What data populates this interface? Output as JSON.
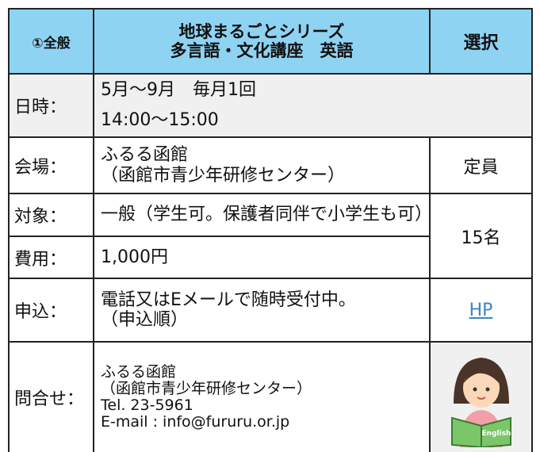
{
  "header": {
    "number": "①全般",
    "title": [
      "地球まるごとシリーズ",
      "多言語・文化講座　英語"
    ],
    "select": "選択"
  },
  "rows": [
    {
      "label": "日時：",
      "lines": [
        "5月～9月　毎月1回",
        "14:00～15:00"
      ]
    },
    {
      "label": "会場：",
      "lines": [
        "ふるる函館",
        "（函館市青少年研修センター）"
      ]
    },
    {
      "label": "対象：",
      "lines": [
        "一般（学生可。保護者同伴で小学生も可）"
      ]
    },
    {
      "label": "費用：",
      "lines": [
        "1,000円"
      ]
    },
    {
      "label": "申込：",
      "lines": [
        "電話又はEメールで随時受付中。",
        "（申込順）"
      ]
    },
    {
      "label": "問合せ：",
      "lines": [
        "ふるる函館",
        "（函館市青少年研修センター）",
        "Tel. 23-5961",
        "E-mail : info@fururu.or.jp"
      ]
    }
  ],
  "side": {
    "capacity_label": "定員",
    "capacity": "15名",
    "link": "HP",
    "book_text": "English"
  }
}
